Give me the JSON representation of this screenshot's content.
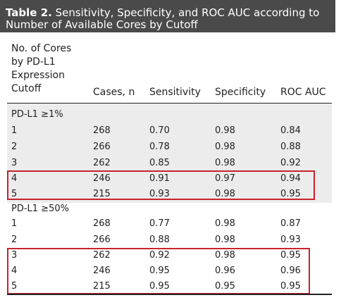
{
  "table": {
    "title_number": "Table 2.",
    "title_text": " Sensitivity, Specificity, and ROC AUC according to Number of Available Cores by Cutoff",
    "columns": {
      "cores": "No. of Cores\nby PD-L1\nExpression\nCutoff",
      "cases": "Cases, n",
      "sensitivity": "Sensitivity",
      "specificity": "Specificity",
      "roc_auc": "ROC AUC"
    },
    "groups": [
      {
        "label": "PD-L1 ≥1%",
        "rows": [
          {
            "cores": "1",
            "cases": "268",
            "sensitivity": "0.70",
            "specificity": "0.98",
            "roc_auc": "0.84"
          },
          {
            "cores": "2",
            "cases": "266",
            "sensitivity": "0.78",
            "specificity": "0.98",
            "roc_auc": "0.88"
          },
          {
            "cores": "3",
            "cases": "262",
            "sensitivity": "0.85",
            "specificity": "0.98",
            "roc_auc": "0.92"
          },
          {
            "cores": "4",
            "cases": "246",
            "sensitivity": "0.91",
            "specificity": "0.97",
            "roc_auc": "0.94"
          },
          {
            "cores": "5",
            "cases": "215",
            "sensitivity": "0.93",
            "specificity": "0.98",
            "roc_auc": "0.95"
          }
        ]
      },
      {
        "label": "PD-L1 ≥50%",
        "rows": [
          {
            "cores": "1",
            "cases": "268",
            "sensitivity": "0.77",
            "specificity": "0.98",
            "roc_auc": "0.87"
          },
          {
            "cores": "2",
            "cases": "266",
            "sensitivity": "0.88",
            "specificity": "0.98",
            "roc_auc": "0.93"
          },
          {
            "cores": "3",
            "cases": "262",
            "sensitivity": "0.92",
            "specificity": "0.98",
            "roc_auc": "0.95"
          },
          {
            "cores": "4",
            "cases": "246",
            "sensitivity": "0.95",
            "specificity": "0.96",
            "roc_auc": "0.96"
          },
          {
            "cores": "5",
            "cases": "215",
            "sensitivity": "0.95",
            "specificity": "0.95",
            "roc_auc": "0.95"
          }
        ]
      }
    ]
  },
  "colors": {
    "title_background": "#4a4a4a",
    "title_text": "#ffffff",
    "group_band": "#ececec",
    "highlight_box": "#c8232c"
  }
}
